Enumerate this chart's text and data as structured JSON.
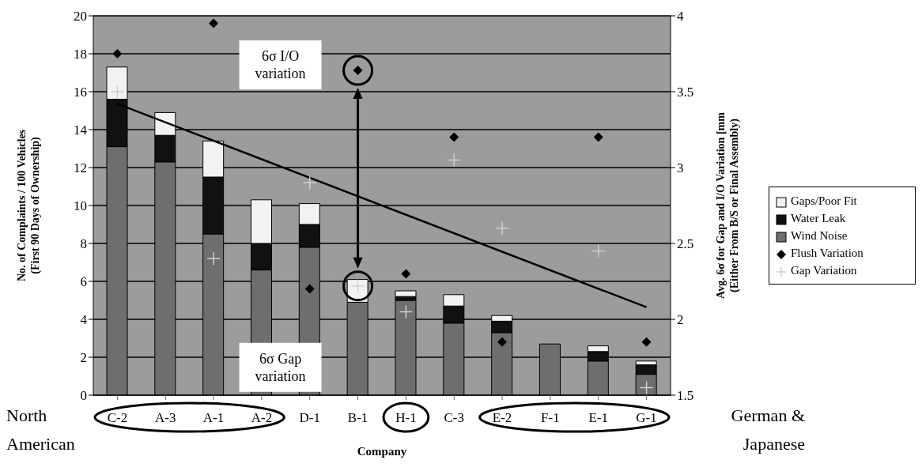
{
  "chart_data": {
    "type": "bar",
    "stacked": true,
    "xlabel": "Company",
    "ylabel": "No. of Complaints / 100 Vehicles (First 90 Days of Ownership)",
    "y2label": "Avg. 6σ for Gap and I/O Variation [mm (Either From B/S or Final Assembly)",
    "categories": [
      "C-2",
      "A-3",
      "A-1",
      "A-2",
      "D-1",
      "B-1",
      "H-1",
      "C-3",
      "E-2",
      "F-1",
      "E-1",
      "G-1"
    ],
    "series": [
      {
        "name": "Wind Noise",
        "color": "#6e6e6e",
        "values": [
          13.1,
          12.3,
          8.5,
          6.6,
          7.8,
          4.9,
          5.0,
          3.8,
          3.3,
          2.7,
          1.8,
          1.1
        ]
      },
      {
        "name": "Water Leak",
        "color": "#111111",
        "values": [
          2.5,
          1.4,
          3.0,
          1.4,
          1.2,
          0,
          0.2,
          0.9,
          0.6,
          0,
          0.5,
          0.5
        ]
      },
      {
        "name": "Gaps/Poor Fit",
        "color": "#f2f2f2",
        "values": [
          1.7,
          1.2,
          1.9,
          2.3,
          1.1,
          1.2,
          0.3,
          0.6,
          0.3,
          0,
          0.3,
          0.2
        ]
      },
      {
        "name": "Flush Variation",
        "type": "scatter",
        "axis": "y2",
        "marker": "diamond",
        "color": "#000000",
        "values": [
          3.75,
          null,
          3.95,
          null,
          2.2,
          3.64,
          2.3,
          3.2,
          1.85,
          null,
          3.2,
          1.85
        ]
      },
      {
        "name": "Gap Variation",
        "type": "scatter",
        "axis": "y2",
        "marker": "cross",
        "color": "#cfcfcf",
        "values": [
          3.5,
          null,
          2.4,
          null,
          2.9,
          2.22,
          2.05,
          3.05,
          2.6,
          null,
          2.45,
          1.55
        ]
      },
      {
        "type": "line",
        "axis": "y2",
        "marker": "none",
        "color": "#000000",
        "x": [
          "C-2",
          "G-1"
        ],
        "values": [
          3.42,
          2.08
        ]
      }
    ],
    "ylim": [
      0,
      20
    ],
    "yticks": [
      0,
      2,
      4,
      6,
      8,
      10,
      12,
      14,
      16,
      18,
      20
    ],
    "y2lim": [
      1.5,
      4
    ],
    "y2ticks": [
      1.5,
      2,
      2.5,
      3,
      3.5,
      4
    ],
    "grid": "y",
    "legend": "right",
    "annotations": [
      "6σ I/O variation",
      "6σ Gap variation",
      "North American",
      "German & Japanese"
    ]
  }
}
